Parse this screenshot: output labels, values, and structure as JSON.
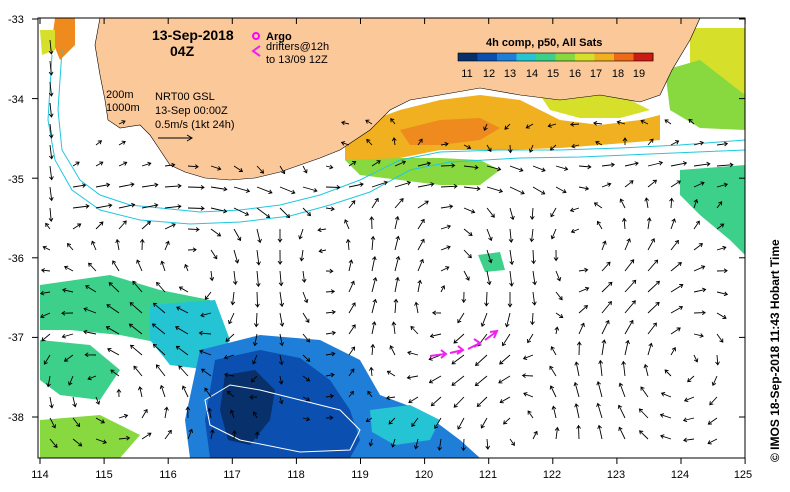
{
  "map": {
    "date": "13-Sep-2018",
    "time": "04Z",
    "argo_label": "Argo",
    "drifters_label_1": "drifters@12h",
    "drifters_label_2": "to 13/09 12Z",
    "colorbar_title": "4h comp, p50, All Sats",
    "colorbar_ticks": [
      "11",
      "12",
      "13",
      "14",
      "15",
      "16",
      "17",
      "18",
      "19"
    ],
    "colorbar_colors": [
      "#08306b",
      "#0b4fb0",
      "#1f7fd8",
      "#25c4d4",
      "#3cd08a",
      "#88d840",
      "#d6e02a",
      "#f0b020",
      "#ee6a18",
      "#cc1a14"
    ],
    "contour_200": "200m",
    "contour_1000": "1000m",
    "nrt_label": "NRT00 GSL",
    "nrt_time": "13-Sep 00:00Z",
    "scale_label": "0.5m/s (1kt 24h)",
    "credit": "© IMOS 18-Sep-2018 11:43 Hobart Time",
    "lat_ticks": [
      "-33",
      "-34",
      "-35",
      "-36",
      "-37",
      "-38"
    ],
    "lon_ticks": [
      "114",
      "115",
      "116",
      "117",
      "118",
      "119",
      "120",
      "121",
      "122",
      "123",
      "124",
      "125"
    ],
    "land_color": "#fbc89a",
    "argo_color": "#ff00ff",
    "drifter_color": "#ee22ee"
  }
}
